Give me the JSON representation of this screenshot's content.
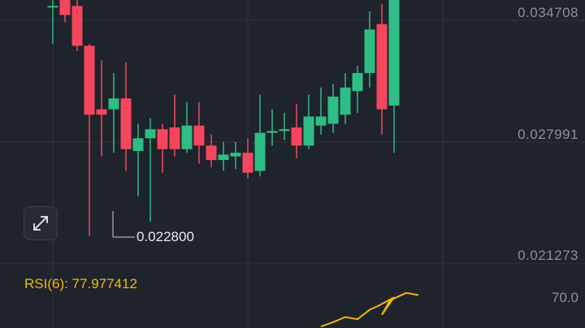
{
  "price_axis": {
    "labels": [
      "0.034708",
      "0.027991",
      "0.021273"
    ]
  },
  "low_marker": {
    "value": "0.022800"
  },
  "rsi": {
    "label": "RSI(6): 77.977412",
    "level_label": "70.0",
    "color": "#f0b90b",
    "values": [
      32,
      38,
      45,
      42,
      55,
      60,
      72,
      48,
      68,
      78,
      75
    ]
  },
  "colors": {
    "up": "#2ebd85",
    "down": "#f6465d",
    "background": "#1f232b",
    "grid": "#2d323b",
    "axis_text": "#8b919c"
  },
  "icons": {
    "expand": "expand-arrows-icon"
  },
  "chart_data": {
    "type": "candlestick",
    "y_axis": {
      "top_label": "0.034708",
      "mid_label": "0.027991",
      "bottom_label": "0.021273"
    },
    "candles": [
      {
        "o": 0.0355,
        "h": 0.0375,
        "l": 0.0334,
        "c": 0.0355
      },
      {
        "o": 0.036,
        "h": 0.0375,
        "l": 0.0346,
        "c": 0.035
      },
      {
        "o": 0.0355,
        "h": 0.0375,
        "l": 0.033,
        "c": 0.0333
      },
      {
        "o": 0.0333,
        "h": 0.0334,
        "l": 0.0228,
        "c": 0.0295
      },
      {
        "o": 0.0298,
        "h": 0.0325,
        "l": 0.0272,
        "c": 0.0295
      },
      {
        "o": 0.0298,
        "h": 0.0318,
        "l": 0.0274,
        "c": 0.0304
      },
      {
        "o": 0.0304,
        "h": 0.0324,
        "l": 0.0264,
        "c": 0.0276
      },
      {
        "o": 0.0275,
        "h": 0.029,
        "l": 0.025,
        "c": 0.0282
      },
      {
        "o": 0.0282,
        "h": 0.0293,
        "l": 0.0236,
        "c": 0.0287
      },
      {
        "o": 0.0287,
        "h": 0.029,
        "l": 0.0263,
        "c": 0.0276
      },
      {
        "o": 0.0288,
        "h": 0.0306,
        "l": 0.0272,
        "c": 0.0276
      },
      {
        "o": 0.0276,
        "h": 0.0302,
        "l": 0.0274,
        "c": 0.0289
      },
      {
        "o": 0.0289,
        "h": 0.0302,
        "l": 0.0268,
        "c": 0.0278
      },
      {
        "o": 0.0278,
        "h": 0.0284,
        "l": 0.0266,
        "c": 0.027
      },
      {
        "o": 0.027,
        "h": 0.028,
        "l": 0.0264,
        "c": 0.0273
      },
      {
        "o": 0.0272,
        "h": 0.028,
        "l": 0.0265,
        "c": 0.0274
      },
      {
        "o": 0.0274,
        "h": 0.0282,
        "l": 0.026,
        "c": 0.0263
      },
      {
        "o": 0.0264,
        "h": 0.0306,
        "l": 0.0261,
        "c": 0.0285
      },
      {
        "o": 0.0285,
        "h": 0.0298,
        "l": 0.0278,
        "c": 0.0286
      },
      {
        "o": 0.0286,
        "h": 0.0296,
        "l": 0.0281,
        "c": 0.0287
      },
      {
        "o": 0.0288,
        "h": 0.0301,
        "l": 0.0271,
        "c": 0.0278
      },
      {
        "o": 0.0278,
        "h": 0.0306,
        "l": 0.0276,
        "c": 0.0294
      },
      {
        "o": 0.0289,
        "h": 0.031,
        "l": 0.0284,
        "c": 0.0294
      },
      {
        "o": 0.029,
        "h": 0.0312,
        "l": 0.0285,
        "c": 0.0305
      },
      {
        "o": 0.0295,
        "h": 0.0318,
        "l": 0.029,
        "c": 0.031
      },
      {
        "o": 0.0308,
        "h": 0.0322,
        "l": 0.0296,
        "c": 0.0318
      },
      {
        "o": 0.0318,
        "h": 0.0352,
        "l": 0.031,
        "c": 0.0342
      },
      {
        "o": 0.0345,
        "h": 0.0356,
        "l": 0.0284,
        "c": 0.0298
      },
      {
        "o": 0.03,
        "h": 0.0375,
        "l": 0.0274,
        "c": 0.0375
      }
    ]
  }
}
